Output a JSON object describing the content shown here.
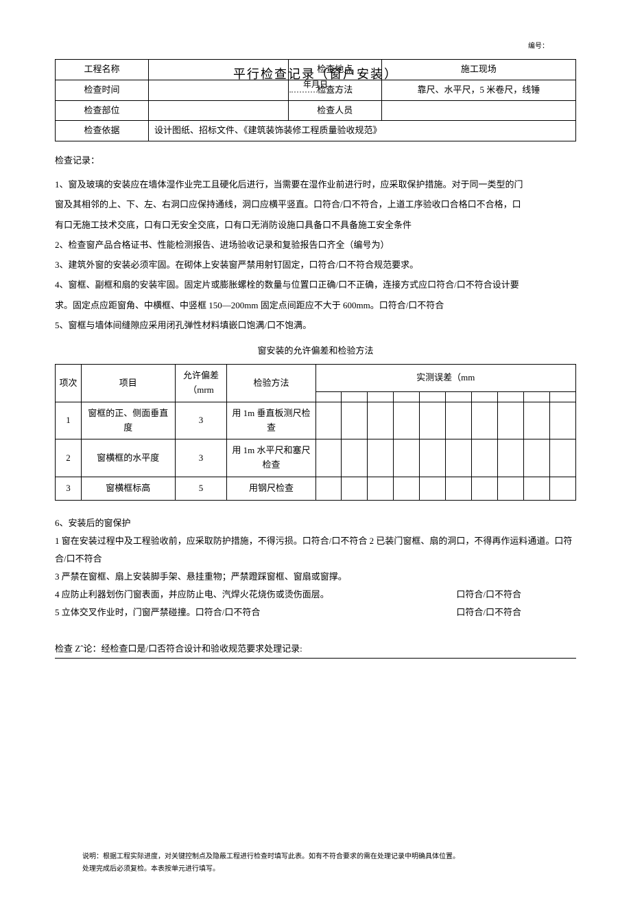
{
  "serial_label": "编号：",
  "title": "平行检查记录（窗户安装）",
  "subtitle": "年月日",
  "header": {
    "row1": {
      "l1": "工程名称",
      "v1": "",
      "l2": "检查地点",
      "v2": "施工现场"
    },
    "row2": {
      "l1": "检查时间",
      "v1": "",
      "l2": "检查方法",
      "v2": "靠尺、水平尺，5 米卷尺，线锤"
    },
    "row3": {
      "l1": "检查部位",
      "v1": "",
      "l2": "检查人员",
      "v2": ""
    },
    "row4": {
      "l1": "检查依据",
      "v1": "设计图纸、招标文件、《建筑装饰装修工程质量验收规范》"
    }
  },
  "records_heading": "检查记录：",
  "records": [
    "1、窗及玻璃的安装应在墙体湿作业完工且硬化后进行，当需要在湿作业前进行时，应采取保护措施。对于同一类型的门",
    "窗及其相邻的上、下、左、右洞口应保持通线，洞口应横平竖直。口符合/口不符合，上道工序验收口合格口不合格，口",
    "有口无施工技术交底，口有口无安全交底，口有口无消防设施口具备口不具备施工安全条件",
    "2、检查窗产品合格证书、性能检测报告、进场验收记录和复验报告口齐全（编号为）",
    "3、建筑外窗的安装必须牢固。在砌体上安装窗严禁用射钉固定，口符合/口不符合规范要求。",
    "4、窗框、副框和扇的安装牢固。固定片或膨胀螺栓的数量与位置口正确/口不正确，连接方式应口符合/口不符合设计要",
    "求。固定点应距窗角、中横框、中竖框 150—200mm 固定点间距应不大于 600mm。口符合/口不符合",
    "5、窗框与墙体间缝隙应采用闭孔弹性材料填嵌口饱满/口不饱满。"
  ],
  "tolerance_title": "窗安装的允许偏差和检验方法",
  "tolerance_table": {
    "headers": {
      "seq": "项次",
      "item": "项目",
      "tol": "允许偏差（mrm",
      "method": "检验方法",
      "actual": "实测误差（mm"
    },
    "rows": [
      {
        "seq": "1",
        "item": "窗框的正、侧面垂直度",
        "tol": "3",
        "method": "用 1m 垂直板测尺检查"
      },
      {
        "seq": "2",
        "item": "窗横框的水平度",
        "tol": "3",
        "method": "用 1m 水平尺和塞尺检查"
      },
      {
        "seq": "3",
        "item": "窗横框标高",
        "tol": "5",
        "method": "用钢尺检查"
      }
    ]
  },
  "protection": {
    "heading": "6、安装后的窗保护",
    "items": [
      {
        "text": "1 窗在安装过程中及工程验收前，应采取防护措施，不得污损。口符合/口不符合 2 已装门窗框、扇的洞口，不得再作运料通道。口符合/口不符合"
      },
      {
        "text": "3 严禁在窗框、扇上安装脚手架、悬挂重物；严禁蹬踩窗框、窗扇或窗撑。"
      },
      {
        "text": "4 应防止利器划伤门窗表面，并应防止电、汽焊火花烧伤或烫伤面层。",
        "right": "口符合/口不符合"
      },
      {
        "text": "5 立体交叉作业时，门窗严禁碰撞。口符合/口不符合",
        "right": "口符合/口不符合"
      }
    ]
  },
  "conclusion": "检查 Zˆ论：经检查口是/口否符合设计和验收规范要求处理记录:",
  "footer": [
    "说明：根据工程实际进度，对关键控制点及隐蔽工程进行检查时填写此表。如有不符合要求的需在处理记录中明确具体位置。",
    "处理完成后必须复检。本表按单元进行填写。"
  ]
}
